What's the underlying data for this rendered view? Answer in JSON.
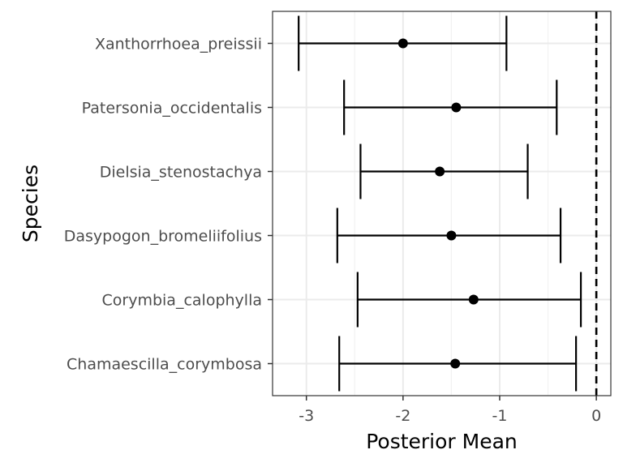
{
  "chart_data": {
    "type": "scatter",
    "title": "",
    "xlabel": "Posterior Mean",
    "ylabel": "Species",
    "xlim": [
      -3.35,
      0.15
    ],
    "x_ticks": [
      -3,
      -2,
      -1,
      0
    ],
    "x_tick_labels": [
      "-3",
      "-2",
      "-1",
      "0"
    ],
    "reference_line": {
      "x": 0,
      "style": "dashed",
      "color": "#000000"
    },
    "grid": true,
    "legend": "none",
    "point_color": "#000000",
    "series": [
      {
        "category": "Xanthorrhoea_preissii",
        "mean": -2.0,
        "lower": -3.08,
        "upper": -0.93
      },
      {
        "category": "Patersonia_occidentalis",
        "mean": -1.45,
        "lower": -2.61,
        "upper": -0.41
      },
      {
        "category": "Dielsia_stenostachya",
        "mean": -1.62,
        "lower": -2.44,
        "upper": -0.71
      },
      {
        "category": "Dasypogon_bromeliifolius",
        "mean": -1.5,
        "lower": -2.68,
        "upper": -0.37
      },
      {
        "category": "Corymbia_calophylla",
        "mean": -1.27,
        "lower": -2.47,
        "upper": -0.16
      },
      {
        "category": "Chamaescilla_corymbosa",
        "mean": -1.46,
        "lower": -2.66,
        "upper": -0.21
      }
    ]
  }
}
